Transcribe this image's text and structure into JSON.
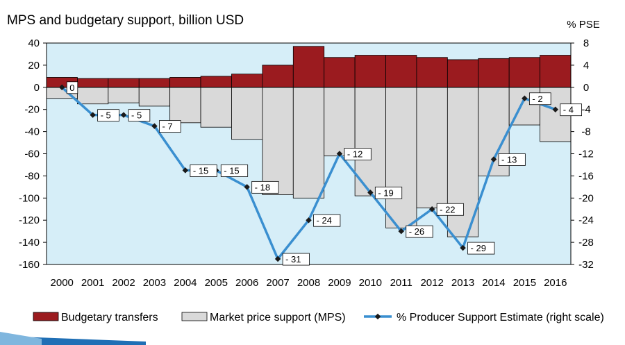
{
  "chart_data": {
    "type": "bar+line",
    "title": "MPS and budgetary support, billion USD",
    "right_axis_title": "% PSE",
    "categories": [
      "2000",
      "2001",
      "2002",
      "2003",
      "2004",
      "2005",
      "2006",
      "2007",
      "2008",
      "2009",
      "2010",
      "2011",
      "2012",
      "2013",
      "2014",
      "2015",
      "2016"
    ],
    "ylim": [
      -160,
      40
    ],
    "y_ticks": [
      40,
      20,
      0,
      -20,
      -40,
      -60,
      -80,
      -100,
      -120,
      -140,
      -160
    ],
    "y2lim": [
      -32,
      8
    ],
    "y2_ticks": [
      8,
      4,
      0,
      -4,
      -8,
      -12,
      -16,
      -20,
      -24,
      -28,
      -32
    ],
    "series": [
      {
        "name": "Budgetary transfers",
        "axis": "left",
        "kind": "bar",
        "color": "#9b1b1f",
        "values": [
          9,
          8,
          8,
          8,
          9,
          10,
          12,
          20,
          37,
          27,
          29,
          29,
          27,
          25,
          26,
          27,
          29
        ]
      },
      {
        "name": "Market price support (MPS)",
        "axis": "left",
        "kind": "bar",
        "color": "#d9d9d9",
        "values": [
          -10,
          -15,
          -14,
          -17,
          -32,
          -36,
          -47,
          -97,
          -100,
          -62,
          -98,
          -127,
          -109,
          -135,
          -80,
          -34,
          -49
        ]
      },
      {
        "name": "% Producer Support Estimate (right scale)",
        "axis": "right",
        "kind": "line",
        "color": "#3a8fd0",
        "values": [
          0,
          -5,
          -5,
          -7,
          -15,
          -15,
          -18,
          -31,
          -24,
          -12,
          -19,
          -26,
          -22,
          -29,
          -13,
          -2,
          -4
        ],
        "labels": [
          "0",
          "- 5",
          "- 5",
          "- 7",
          "- 15",
          "- 15",
          "- 18",
          "- 31",
          "- 24",
          "- 12",
          "- 19",
          "- 26",
          "- 22",
          "- 29",
          "- 13",
          "- 2",
          "- 4"
        ]
      }
    ],
    "legend": "bottom",
    "plot_background": "#d6eef8",
    "grid": false
  }
}
